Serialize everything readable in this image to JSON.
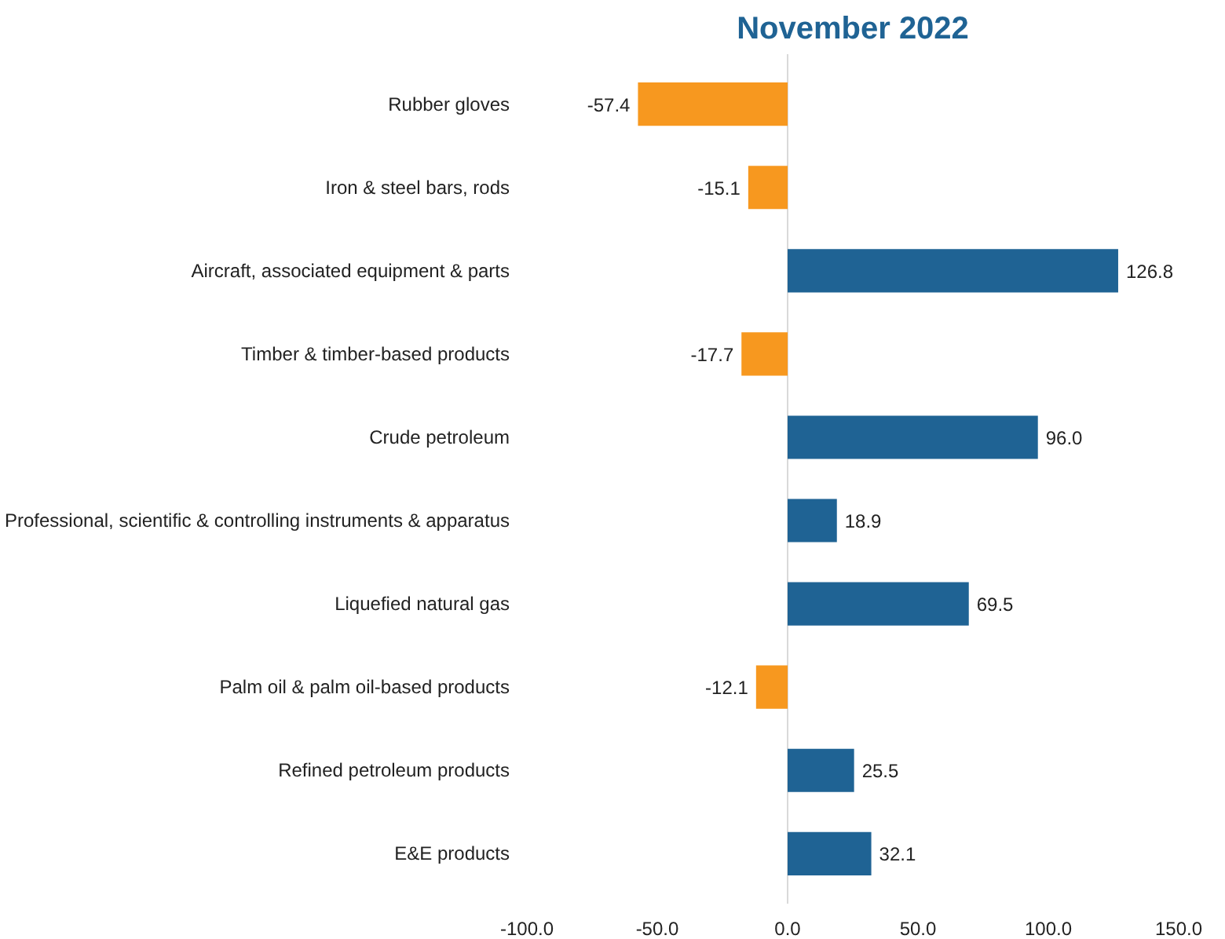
{
  "chart_data": {
    "type": "bar",
    "orientation": "horizontal",
    "title": "November 2022",
    "categories": [
      "Rubber gloves",
      "Iron & steel bars, rods",
      "Aircraft, associated equipment & parts",
      "Timber & timber-based products",
      "Crude petroleum",
      "Professional, scientific & controlling instruments & apparatus",
      "Liquefied natural gas",
      "Palm oil & palm oil-based products",
      "Refined petroleum products",
      "E&E products"
    ],
    "values": [
      -57.4,
      -15.1,
      126.8,
      -17.7,
      96.0,
      18.9,
      69.5,
      -12.1,
      25.5,
      32.1
    ],
    "value_labels": [
      "-57.4",
      "-15.1",
      "126.8",
      "-17.7",
      "96.0",
      "18.9",
      "69.5",
      "-12.1",
      "25.5",
      "32.1"
    ],
    "colors": [
      "#f7981f",
      "#f7981f",
      "#1f6394",
      "#f7981f",
      "#1f6394",
      "#1f6394",
      "#1f6394",
      "#f7981f",
      "#1f6394",
      "#1f6394"
    ],
    "xlim": [
      -100,
      150
    ],
    "xticks": [
      {
        "value": -100,
        "label": "-100.0"
      },
      {
        "value": -50,
        "label": "-50.0"
      },
      {
        "value": 0,
        "label": "0.0"
      },
      {
        "value": 50,
        "label": "50.0"
      },
      {
        "value": 100,
        "label": "100.0"
      },
      {
        "value": 150,
        "label": "150.0"
      }
    ],
    "ref_lines": [
      {
        "axis": "x",
        "value": 0,
        "color": "#d9d9d9"
      }
    ],
    "grid": false
  }
}
